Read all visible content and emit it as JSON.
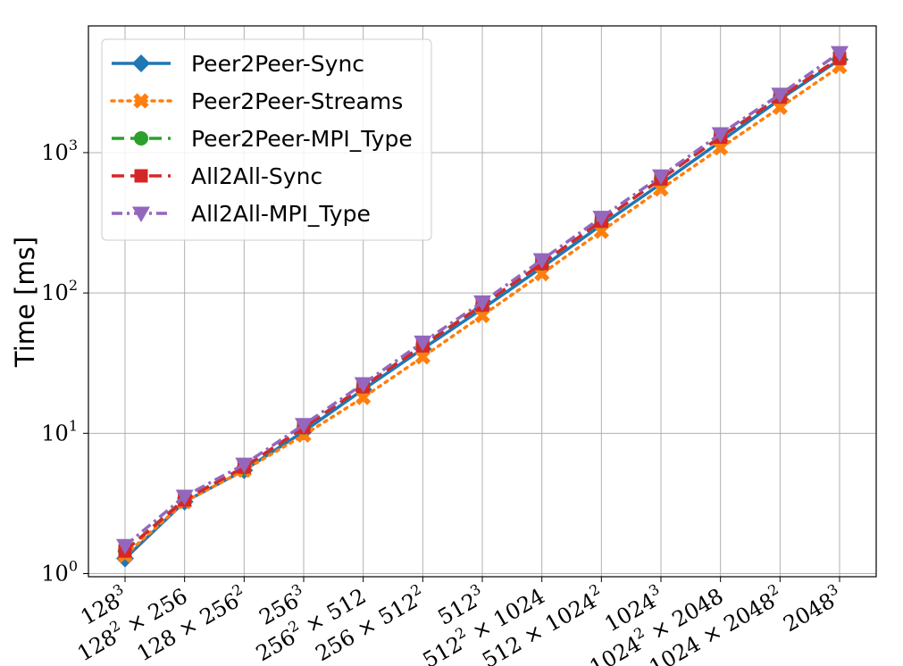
{
  "chart_data": {
    "type": "line",
    "ylabel": "Time [ms]",
    "yscale": "log",
    "ylim": [
      0.95,
      8000
    ],
    "grid": true,
    "legend_position": "top-left",
    "categories": [
      {
        "base": "128",
        "exp": "3",
        "rest": ""
      },
      {
        "base": "128",
        "exp": "2",
        "rest": " × 256"
      },
      {
        "base": "128 × 256",
        "exp": "2",
        "rest": ""
      },
      {
        "base": "256",
        "exp": "3",
        "rest": ""
      },
      {
        "base": "256",
        "exp": "2",
        "rest": " × 512"
      },
      {
        "base": "256 × 512",
        "exp": "2",
        "rest": ""
      },
      {
        "base": "512",
        "exp": "3",
        "rest": ""
      },
      {
        "base": "512",
        "exp": "2",
        "rest": " × 1024"
      },
      {
        "base": "512 × 1024",
        "exp": "2",
        "rest": ""
      },
      {
        "base": "1024",
        "exp": "3",
        "rest": ""
      },
      {
        "base": "1024",
        "exp": "2",
        "rest": " × 2048"
      },
      {
        "base": "1024 × 2048",
        "exp": "2",
        "rest": ""
      },
      {
        "base": "2048",
        "exp": "3",
        "rest": ""
      }
    ],
    "yticks": [
      {
        "value": 1,
        "base": "10",
        "exp": "0"
      },
      {
        "value": 10,
        "base": "10",
        "exp": "1"
      },
      {
        "value": 100,
        "base": "10",
        "exp": "2"
      },
      {
        "value": 1000,
        "base": "10",
        "exp": "3"
      }
    ],
    "series": [
      {
        "name": "Peer2Peer-Sync",
        "color": "#1f77b4",
        "dash": "solid",
        "marker": "diamond",
        "values": [
          1.28,
          3.25,
          5.45,
          10.3,
          20.5,
          40.0,
          77.0,
          152,
          305,
          600,
          1200,
          2400,
          4600
        ]
      },
      {
        "name": "Peer2Peer-Streams",
        "color": "#ff7f0e",
        "dash": "dotted",
        "marker": "x",
        "values": [
          1.35,
          3.25,
          5.45,
          9.7,
          18.0,
          35.0,
          69.0,
          137,
          275,
          550,
          1080,
          2100,
          4100
        ]
      },
      {
        "name": "Peer2Peer-MPI_Type",
        "color": "#2ca02c",
        "dash": "dashed",
        "marker": "circle",
        "values": [
          1.45,
          3.4,
          5.7,
          11.0,
          21.5,
          42.5,
          82.0,
          162,
          325,
          650,
          1300,
          2500,
          4700
        ]
      },
      {
        "name": "All2All-Sync",
        "color": "#d62728",
        "dash": "dashed",
        "marker": "square",
        "values": [
          1.45,
          3.35,
          5.75,
          11.0,
          21.5,
          42.0,
          82.0,
          162,
          325,
          650,
          1290,
          2490,
          4700
        ]
      },
      {
        "name": "All2All-MPI_Type",
        "color": "#9467bd",
        "dash": "dashdot",
        "marker": "triangle-down",
        "values": [
          1.58,
          3.55,
          6.0,
          11.5,
          22.5,
          44.5,
          86.0,
          172,
          345,
          680,
          1360,
          2600,
          5150
        ]
      }
    ]
  }
}
